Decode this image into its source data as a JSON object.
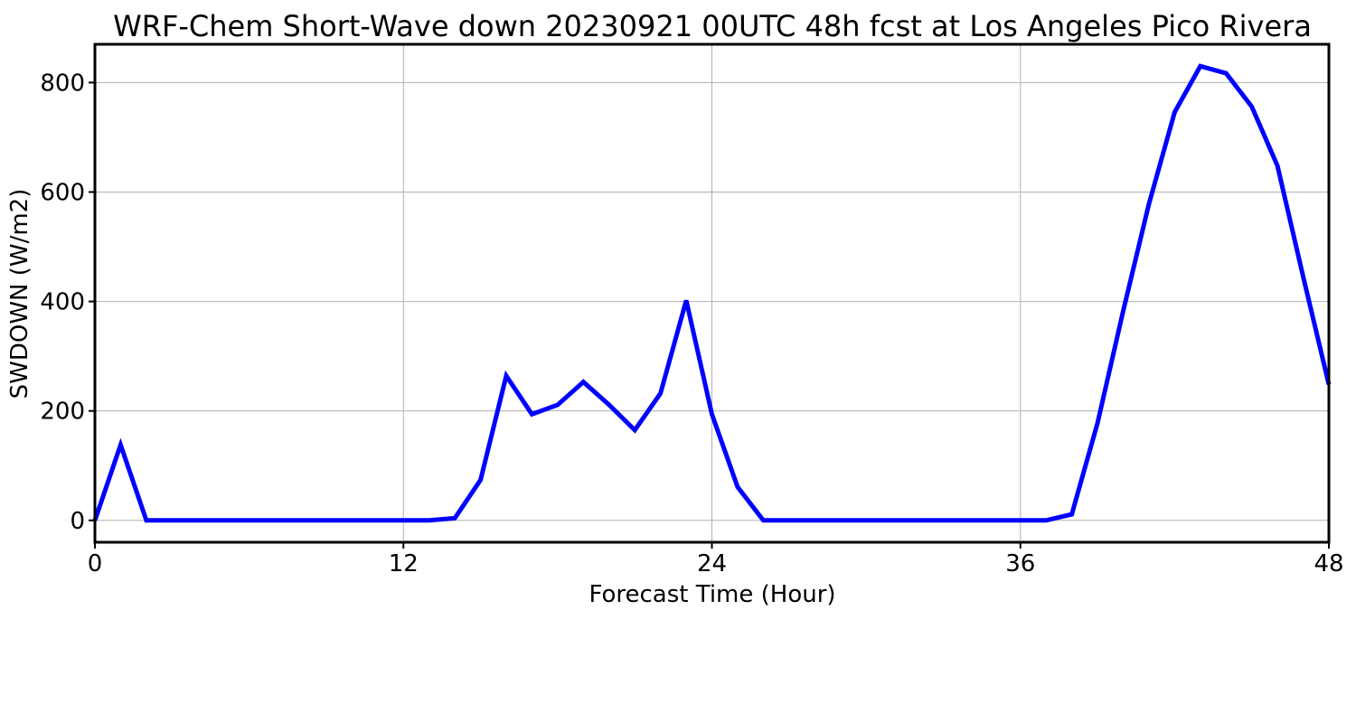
{
  "chart_data": {
    "type": "line",
    "title": "WRF-Chem Short-Wave down  20230921 00UTC 48h fcst at Los Angeles Pico Rivera",
    "xlabel": "Forecast Time (Hour)",
    "ylabel": "SWDOWN  (W/m2)",
    "xlim": [
      0,
      48
    ],
    "ylim": [
      -40,
      870
    ],
    "xticks": [
      0,
      12,
      24,
      36,
      48
    ],
    "yticks": [
      0,
      200,
      400,
      600,
      800
    ],
    "xtick_labels": [
      "0",
      "12",
      "24",
      "36",
      "48"
    ],
    "ytick_labels": [
      "0",
      "200",
      "400",
      "600",
      "800"
    ],
    "grid": true,
    "line_color": "#0000ff",
    "series": [
      {
        "x": [
          0,
          1,
          2,
          3,
          4,
          5,
          6,
          7,
          8,
          9,
          10,
          11,
          12,
          13,
          14,
          15,
          16,
          17,
          18,
          19,
          20,
          21,
          22,
          23,
          24,
          25,
          26,
          27,
          28,
          29,
          30,
          31,
          32,
          33,
          34,
          35,
          36,
          37,
          38,
          39,
          40,
          41,
          42,
          43,
          44,
          45,
          46,
          47,
          48
        ],
        "values": [
          0,
          138,
          0,
          0,
          0,
          0,
          0,
          0,
          0,
          0,
          0,
          0,
          0,
          0,
          4,
          74,
          264,
          194,
          211,
          253,
          211,
          165,
          232,
          402,
          194,
          61,
          0,
          0,
          0,
          0,
          0,
          0,
          0,
          0,
          0,
          0,
          0,
          0,
          11,
          178,
          383,
          578,
          746,
          830,
          817,
          756,
          648,
          445,
          248
        ]
      }
    ]
  }
}
